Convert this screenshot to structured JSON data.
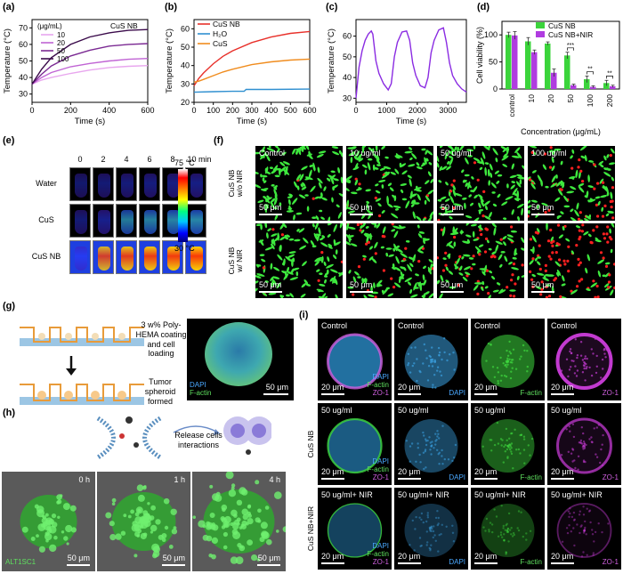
{
  "panel_labels": {
    "a": "(a)",
    "b": "(b)",
    "c": "(c)",
    "d": "(d)",
    "e": "(e)",
    "f": "(f)",
    "g": "(g)",
    "h": "(h)",
    "i": "(i)"
  },
  "chart_data": [
    {
      "id": "a",
      "type": "line",
      "title": "CuS NB",
      "xlabel": "Time (s)",
      "ylabel": "Temperature (°C)",
      "xlim": [
        0,
        600
      ],
      "ylim": [
        25,
        75
      ],
      "xticks": [
        0,
        200,
        400,
        600
      ],
      "yticks": [
        30,
        40,
        50,
        60,
        70
      ],
      "legend_title": "(μg/mL)",
      "series": [
        {
          "name": "10",
          "color": "#e8a6ee",
          "x": [
            0,
            50,
            100,
            200,
            300,
            400,
            500,
            600
          ],
          "y": [
            36,
            38.5,
            40,
            42.5,
            44.5,
            46,
            46.8,
            47.2
          ]
        },
        {
          "name": "20",
          "color": "#c064d4",
          "x": [
            0,
            50,
            100,
            200,
            300,
            400,
            500,
            600
          ],
          "y": [
            36,
            40,
            43,
            46.5,
            48.5,
            50,
            51,
            51.5
          ]
        },
        {
          "name": "50",
          "color": "#7b2a93",
          "x": [
            0,
            50,
            100,
            200,
            300,
            400,
            500,
            600
          ],
          "y": [
            36,
            42,
            47,
            53,
            56.5,
            59,
            60,
            60.5
          ]
        },
        {
          "name": "100",
          "color": "#3a0a4a",
          "x": [
            0,
            50,
            100,
            200,
            300,
            400,
            500,
            600
          ],
          "y": [
            36,
            45,
            52,
            60,
            64.5,
            67,
            68.5,
            69
          ]
        }
      ]
    },
    {
      "id": "b",
      "type": "line",
      "xlabel": "Time (s)",
      "ylabel": "Temperature (°C)",
      "xlim": [
        0,
        600
      ],
      "ylim": [
        20,
        65
      ],
      "xticks": [
        0,
        100,
        200,
        300,
        400,
        500,
        600
      ],
      "yticks": [
        20,
        30,
        40,
        50,
        60
      ],
      "series": [
        {
          "name": "CuS NB",
          "color": "#e8302a",
          "x": [
            0,
            25,
            50,
            100,
            150,
            200,
            300,
            400,
            500,
            600
          ],
          "y": [
            29,
            33,
            36,
            41,
            45,
            48,
            52.5,
            55.5,
            57.5,
            58.5
          ]
        },
        {
          "name": "H₂O",
          "color": "#2f8fd0",
          "x": [
            0,
            100,
            200,
            260,
            270,
            400,
            600
          ],
          "y": [
            25.5,
            25.8,
            26,
            26,
            27,
            27,
            27.2
          ]
        },
        {
          "name": "CuS",
          "color": "#f08c1e",
          "x": [
            0,
            25,
            50,
            100,
            150,
            200,
            300,
            400,
            500,
            600
          ],
          "y": [
            31,
            31.5,
            32.5,
            34.5,
            36.5,
            38,
            40.5,
            42,
            43,
            43.5
          ]
        }
      ]
    },
    {
      "id": "c",
      "type": "line",
      "xlabel": "Time (s)",
      "ylabel": "Temperature (°C)",
      "xlim": [
        0,
        3600
      ],
      "ylim": [
        28,
        68
      ],
      "xticks": [
        0,
        1000,
        2000,
        3000
      ],
      "yticks": [
        30,
        40,
        50,
        60
      ],
      "series": [
        {
          "name": "cycles",
          "color": "#8a2be2",
          "x": [
            0,
            100,
            200,
            300,
            400,
            500,
            550,
            650,
            750,
            900,
            1050,
            1150,
            1250,
            1350,
            1500,
            1650,
            1750,
            1850,
            1950,
            2100,
            2250,
            2350,
            2450,
            2550,
            2700,
            2850,
            2950,
            3050,
            3150,
            3300,
            3450,
            3600
          ],
          "y": [
            30,
            45,
            53,
            58,
            61,
            62.5,
            61,
            48,
            42,
            37,
            34,
            37,
            50,
            57,
            62,
            62.5,
            58,
            47,
            41,
            36,
            35,
            40,
            52,
            58,
            63,
            64,
            57,
            47,
            41,
            37,
            34.5,
            33
          ]
        }
      ]
    },
    {
      "id": "d",
      "type": "bar",
      "xlabel": "Concentration (μg/mL)",
      "ylabel": "Cell viability (%)",
      "ylim": [
        0,
        125
      ],
      "yticks": [
        0,
        50,
        100
      ],
      "categories": [
        "control",
        "10",
        "20",
        "50",
        "100",
        "200"
      ],
      "series": [
        {
          "name": "CuS NB",
          "color": "#3bd43b",
          "values": [
            100,
            88,
            84,
            62,
            18,
            11
          ]
        },
        {
          "name": "CuS NB+NIR",
          "color": "#b03ce0",
          "values": [
            99,
            68,
            30,
            7,
            4,
            5
          ]
        }
      ],
      "errors": [
        [
          5,
          7,
          3,
          6,
          6,
          5
        ],
        [
          7,
          4,
          7,
          2,
          2,
          2
        ]
      ],
      "significance": [
        {
          "group": "50",
          "label": "***"
        },
        {
          "group": "100",
          "label": "**"
        },
        {
          "group": "200",
          "label": "**"
        }
      ]
    }
  ],
  "panel_e": {
    "times": [
      "0",
      "2",
      "4",
      "6",
      "8",
      "10 min"
    ],
    "rows": [
      "Water",
      "CuS",
      "CuS NB"
    ],
    "scale_max": "75 °C",
    "scale_min": "30 °C"
  },
  "panel_f": {
    "row_labels": [
      "CuS NB\nw/o NIR",
      "CuS NB\nw/ NIR"
    ],
    "col_labels": [
      "Control",
      "10 ug/ml",
      "50 ug/ml",
      "100 ug/ml"
    ],
    "scale": "50 μm",
    "dead_fraction": [
      [
        0.02,
        0.03,
        0.08,
        0.3
      ],
      [
        0.05,
        0.18,
        0.4,
        0.65
      ]
    ]
  },
  "panel_g": {
    "step1": "3 w% Poly-HEMA coating and cell loading",
    "step2": "Tumor spheroid formed",
    "stain1": "DAPI",
    "stain2": "F-actin",
    "scale": "50 μm"
  },
  "panel_h": {
    "caption": "Release cells interactions",
    "times": [
      "0 h",
      "1 h",
      "4 h"
    ],
    "cell_line": "ALT1SC1",
    "scale": "50 μm"
  },
  "panel_i": {
    "row_labels": [
      "CuS NB",
      "CuS NB+NIR"
    ],
    "rows": [
      [
        "Control",
        "Control",
        "Control",
        "Control"
      ],
      [
        "50 ug/ml",
        "50 ug/ml",
        "50 ug/ml",
        "50 ug/ml"
      ],
      [
        "50 ug/ml+ NIR",
        "50 ug/ml+ NIR",
        "50 ug/ml+ NIR",
        "50 ug/ml+ NIR"
      ]
    ],
    "channels": [
      "DAPI",
      "F-actin",
      "ZO-1"
    ],
    "scale": "20 μm"
  }
}
